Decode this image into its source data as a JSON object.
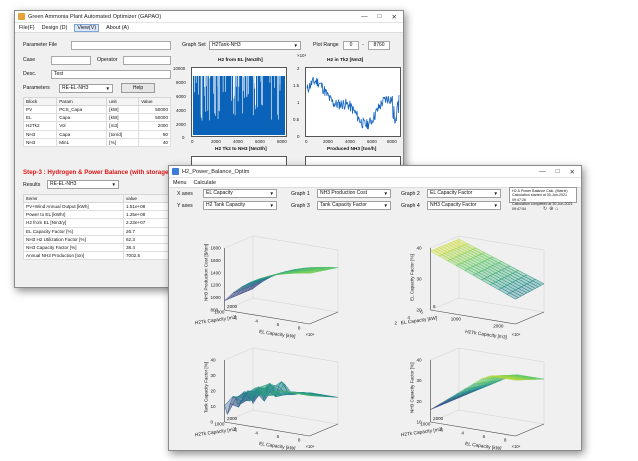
{
  "back_window": {
    "title": "Green Ammonia Plant Automated Optimizer (GAPAO)",
    "menu": [
      "File(F)",
      "Design (D)",
      "View(V)",
      "About (A)"
    ],
    "active_menu": "View(V)",
    "parameter_file_label": "Parameter File",
    "case_label": "Case",
    "operator_label": "Operator",
    "desc_label": "Desc.",
    "desc_value": "Test",
    "parameters_label": "Parameters",
    "parameters_value": "RE-EL-NH3",
    "help_label": "Help",
    "param_table": {
      "headers": [
        "Block",
        "Param",
        "unit",
        "Value"
      ],
      "rows": [
        [
          "PV",
          "PCS_Capa",
          "[kW]",
          "50000"
        ],
        [
          "EL",
          "Capa",
          "[kW]",
          "50000"
        ],
        [
          "H2Tk2",
          "Vol",
          "[m3]",
          "2000"
        ],
        [
          "NH3",
          "Capa",
          "[ton/d]",
          "50"
        ],
        [
          "NH3",
          "MinL",
          "[%]",
          "40"
        ]
      ]
    },
    "graph_set_label": "Graph Set",
    "graph_set_value": "H2Tank-NH3",
    "plot_range_label": "Plot Range",
    "plot_range_from": "0",
    "plot_range_to": "8760",
    "plots": {
      "p1_title": "H2 from EL [Nm3/h]",
      "p2_title": "H2 in Tk2 [Nm3]",
      "p3_title": "H2 Tk2 to NH3 [Nm3/h]",
      "p4_title": "Produced NH3 [ton/h]",
      "p1_yticks": [
        "10000",
        "8000",
        "6000",
        "4000",
        "2000",
        "0"
      ],
      "p2_yticks": [
        "2",
        "1.5",
        "1",
        "0.5",
        "0"
      ],
      "p2_exp": "×10⁴",
      "xticks": [
        "0",
        "2000",
        "4000",
        "6000",
        "8000"
      ]
    },
    "step_title": "Step-3 : Hydrogen & Power Balance (with storage)",
    "results_label": "Results",
    "results_value": "RE-EL-NH3",
    "results_table": {
      "headers": [
        "Items",
        "value"
      ],
      "rows": [
        [
          "PV+Wind Annual Output [kWh]",
          "1.51e+08"
        ],
        [
          "Power to EL [kWhr]",
          "1.25e+08"
        ],
        [
          "H2 from EL [Nm3/y]",
          "2.23e+07"
        ],
        [
          "EL Capacity Factor [%]",
          "26.7"
        ],
        [
          "NH3 H2 Utilization Factor [%]",
          "62.3"
        ],
        [
          "NH3 Capacity Factor [%]",
          "38.4"
        ],
        [
          "Annual NH3 Production [ton]",
          "7002.5"
        ]
      ]
    }
  },
  "front_window": {
    "title": "H2_Power_Balance_Optim",
    "menu": [
      "Menu",
      "Calculate"
    ],
    "x_axes_label": "X axes",
    "x_axes_value": "EL Capacity",
    "y_axes_label": "Y axes",
    "y_axes_value": "H2 Tank Capacity",
    "graph1_label": "Graph 1",
    "graph1_value": "NH3 Production Cost",
    "graph2_label": "Graph 2",
    "graph2_value": "EL Capacity Factor",
    "graph3_label": "Graph 3",
    "graph3_value": "Tank Capacity Factor",
    "graph4_label": "Graph 4",
    "graph4_value": "NH3 Capacity Factor",
    "info_lines": [
      "H2 & Power Balance Calc. (Matrix)",
      "Calculation started at 30-Jun-2021 09:47:26",
      "Calculation completed at 30-Jun-2021 09:47:54"
    ],
    "surfaces": [
      {
        "zlabel": "NH3 Production Cost [$/ton]",
        "zticks": [
          "1800",
          "1600",
          "1400",
          "1200",
          "1000",
          "800"
        ],
        "ylabel": "H2Tk Capacity [m3]",
        "xlabel": "EL Capacity [kW]",
        "yticks": [
          "2000",
          "1000"
        ],
        "xticks": [
          "2",
          "4",
          "6",
          "8"
        ],
        "exp": "×10⁴"
      },
      {
        "zlabel": "EL Capacity Factor [%]",
        "zticks": [
          "40",
          "30",
          "20"
        ],
        "ylabel": "EL Capacity [kW]",
        "xlabel": "H2Tk Capacity [m3]",
        "yticks": [
          "8",
          "6",
          "4",
          "2"
        ],
        "xticks": [
          "1000",
          "2000"
        ],
        "exp": "×10⁴"
      },
      {
        "zlabel": "Tank Capacity Factor [%]",
        "zticks": [
          "40",
          "30",
          "20",
          "10",
          "0"
        ],
        "ylabel": "H2Tk Capacity [m3]",
        "xlabel": "EL Capacity [kW]",
        "yticks": [
          "2000",
          "1000"
        ],
        "xticks": [
          "2",
          "4",
          "6",
          "8"
        ],
        "exp": "×10⁴"
      },
      {
        "zlabel": "NH3 Capacity Factor [%]",
        "zticks": [
          "40",
          "30",
          "20",
          "10"
        ],
        "ylabel": "H2Tk Capacity [m3]",
        "xlabel": "EL Capacity [kW]",
        "yticks": [
          "2000",
          "1000"
        ],
        "xticks": [
          "2",
          "4",
          "6",
          "8"
        ],
        "exp": "×10⁴"
      }
    ]
  },
  "colors": {
    "accent_blue": "#0a63b8",
    "step_red": "#e01414",
    "plot_line": "#1565c0"
  }
}
